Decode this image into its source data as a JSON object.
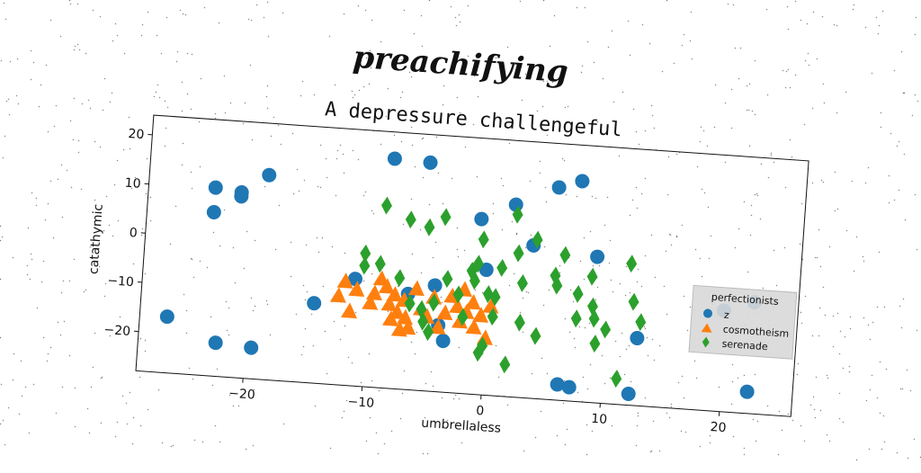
{
  "supertitle": "preachifying",
  "chart_data": {
    "type": "scatter",
    "title": "A depressure challengeful",
    "xlabel": "umbrellaless",
    "ylabel": "catathymic",
    "xlim": [
      -29,
      26
    ],
    "ylim": [
      -28,
      24
    ],
    "xticks": [
      -20,
      -10,
      0,
      10,
      20
    ],
    "yticks": [
      -20,
      -10,
      0,
      10,
      20
    ],
    "grid": false,
    "legend": {
      "title": "perfectionists",
      "placement": "right"
    },
    "series": [
      {
        "name": "z",
        "marker": "circle",
        "color": "#1f77b4",
        "points": [
          [
            -8.6,
            18.6
          ],
          [
            -5.6,
            18.3
          ],
          [
            -26.7,
            -16.6
          ],
          [
            -23.4,
            10.2
          ],
          [
            -23.4,
            5.2
          ],
          [
            -21.2,
            9.6
          ],
          [
            -21.2,
            8.8
          ],
          [
            -19,
            13.5
          ],
          [
            -22.5,
            -21.2
          ],
          [
            -19.5,
            -21.7
          ],
          [
            -14.5,
            -11.8
          ],
          [
            -11.2,
            -6.3
          ],
          [
            -6.7,
            -8.6
          ],
          [
            -4.5,
            -6.5
          ],
          [
            -4,
            -14.5
          ],
          [
            -3.5,
            -17.6
          ],
          [
            -1,
            7.6
          ],
          [
            -0.3,
            -2.6
          ],
          [
            1.8,
            11
          ],
          [
            3.5,
            3
          ],
          [
            5.3,
            15.1
          ],
          [
            7.2,
            16.7
          ],
          [
            8.9,
            1.6
          ],
          [
            12.7,
            -14.3
          ],
          [
            6.3,
            -24.8
          ],
          [
            7.3,
            -25.2
          ],
          [
            12.3,
            -25.7
          ],
          [
            19.8,
            -7.5
          ],
          [
            22.3,
            -5.4
          ],
          [
            22.2,
            -23.6
          ]
        ]
      },
      {
        "name": "cosmotheism",
        "marker": "triangle",
        "color": "#ff7f0e",
        "points": [
          [
            -12,
            -7
          ],
          [
            -12.5,
            -10
          ],
          [
            -11.5,
            -13
          ],
          [
            -11,
            -8.5
          ],
          [
            -9.8,
            -11
          ],
          [
            -9.5,
            -9
          ],
          [
            -9,
            -6
          ],
          [
            -8.5,
            -7.5
          ],
          [
            -8.2,
            -11
          ],
          [
            -8,
            -14
          ],
          [
            -7.8,
            -9
          ],
          [
            -7.5,
            -12.5
          ],
          [
            -7.2,
            -16
          ],
          [
            -7,
            -10
          ],
          [
            -6.8,
            -13.5
          ],
          [
            -6.5,
            -15.5
          ],
          [
            -6,
            -7.5
          ],
          [
            -5.5,
            -11.5
          ],
          [
            -5,
            -13
          ],
          [
            -4.5,
            -9
          ],
          [
            -4,
            -15
          ],
          [
            -3.5,
            -12
          ],
          [
            -3,
            -8.5
          ],
          [
            -2.5,
            -10.5
          ],
          [
            -2.2,
            -13.5
          ],
          [
            -2,
            -7
          ],
          [
            -1.7,
            -11.5
          ],
          [
            -1.2,
            -9.5
          ],
          [
            -1,
            -14.5
          ],
          [
            -0.5,
            -12
          ],
          [
            0,
            -16.5
          ],
          [
            0.3,
            -10
          ]
        ]
      },
      {
        "name": "serenade",
        "marker": "diamond",
        "color": "#2ca02c",
        "points": [
          [
            -9,
            9
          ],
          [
            -6.9,
            6.5
          ],
          [
            -5.3,
            5.2
          ],
          [
            -4,
            7.5
          ],
          [
            -10.5,
            -1
          ],
          [
            -10.5,
            -3.5
          ],
          [
            -9.2,
            -2.9
          ],
          [
            -7.5,
            -5.5
          ],
          [
            -6.5,
            -10.5
          ],
          [
            -5.5,
            -11.5
          ],
          [
            -5.3,
            -14
          ],
          [
            -4.8,
            -16
          ],
          [
            -4.5,
            -10
          ],
          [
            -3.5,
            -5
          ],
          [
            -2.5,
            -8
          ],
          [
            -2,
            -12.5
          ],
          [
            -1.5,
            -3
          ],
          [
            -1.2,
            -5
          ],
          [
            -1,
            -1.5
          ],
          [
            -0.7,
            3.5
          ],
          [
            -0.5,
            -19.5
          ],
          [
            -0.2,
            -18
          ],
          [
            0,
            -7.5
          ],
          [
            0.5,
            -12
          ],
          [
            0.6,
            -8
          ],
          [
            1,
            -2
          ],
          [
            1.8,
            -21.5
          ],
          [
            2,
            9
          ],
          [
            2.3,
            1.2
          ],
          [
            2.8,
            -4.8
          ],
          [
            2.8,
            -12.8
          ],
          [
            3.8,
            4.2
          ],
          [
            4.2,
            -15.3
          ],
          [
            5.5,
            -2.8
          ],
          [
            5.7,
            -4.8
          ],
          [
            6.2,
            1.5
          ],
          [
            7.5,
            -6.2
          ],
          [
            7.5,
            -11.2
          ],
          [
            8.6,
            -2.5
          ],
          [
            8.8,
            -8.5
          ],
          [
            9,
            -11
          ],
          [
            9.2,
            -16
          ],
          [
            10,
            -13
          ],
          [
            11.2,
            -22.8
          ],
          [
            11.8,
            0.7
          ],
          [
            12.2,
            -7
          ],
          [
            12.9,
            -11
          ]
        ]
      }
    ]
  }
}
